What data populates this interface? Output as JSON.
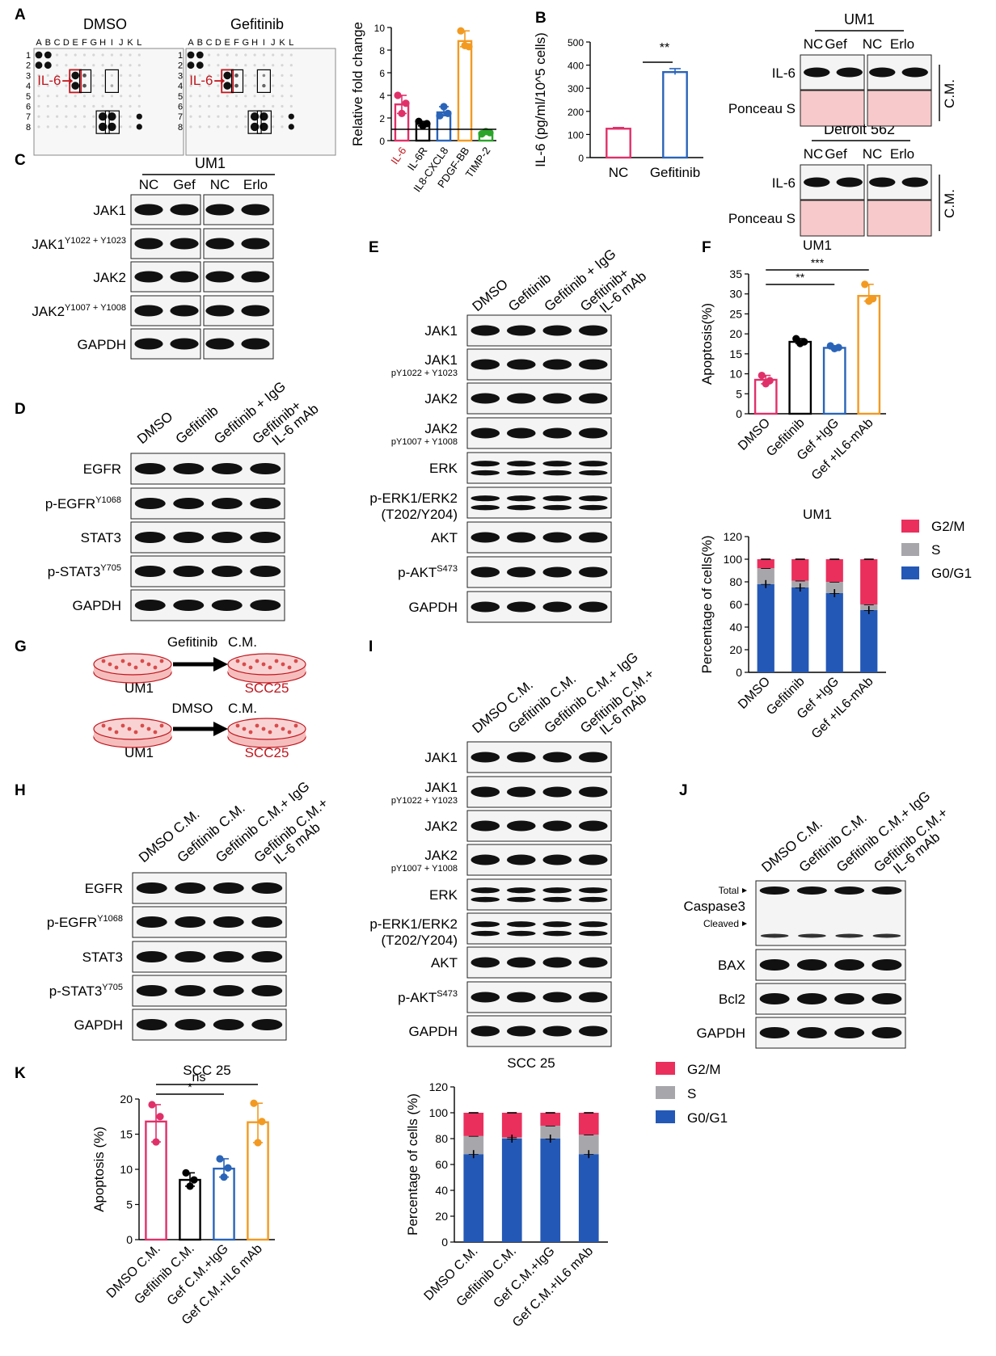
{
  "panels": {
    "A": "A",
    "B": "B",
    "C": "C",
    "D": "D",
    "E": "E",
    "F": "F",
    "G": "G",
    "H": "H",
    "I": "I",
    "J": "J",
    "K": "K"
  },
  "colors": {
    "red": "#e0306a",
    "black": "#000000",
    "blue": "#2a64b8",
    "orange": "#f29a21",
    "green": "#2aa52a",
    "dark_red": "#c0161d",
    "stack_blue": "#2458b6",
    "stack_grey": "#a7a7ab",
    "stack_pink": "#ea2f5d",
    "ponceau": "#f7c9ca"
  },
  "panelA": {
    "array1_title": "DMSO",
    "array2_title": "Gefitinib",
    "cols": [
      "A",
      "B",
      "C",
      "D",
      "E",
      "F",
      "G",
      "H",
      "I",
      "J",
      "K",
      "L"
    ],
    "rows": [
      "1",
      "2",
      "3",
      "4",
      "5",
      "6",
      "7",
      "8"
    ],
    "il6_label": "IL-6"
  },
  "panelB": {
    "um1": "UM1",
    "detroit": "Detroit 562",
    "lanes": [
      "NC",
      "Gef",
      "NC",
      "Erlo"
    ],
    "il6": "IL-6",
    "ponceau": "Ponceau S",
    "cm": "C.M.",
    "sig": "**"
  },
  "panelC": {
    "header": "UM1",
    "lanes": [
      "NC",
      "Gef",
      "NC",
      "Erlo"
    ],
    "rows": [
      {
        "name": "JAK1",
        "sup": ""
      },
      {
        "name": "JAK1",
        "sup": "Y1022 + Y1023"
      },
      {
        "name": "JAK2",
        "sup": ""
      },
      {
        "name": "JAK2",
        "sup": "Y1007 + Y1008"
      },
      {
        "name": "GAPDH",
        "sup": ""
      }
    ]
  },
  "panelD": {
    "lanes": [
      "DMSO",
      "Gefitinib",
      "Gefitinib + IgG",
      "Gefitinib+",
      "IL-6 mAb"
    ],
    "rows": [
      {
        "name": "EGFR",
        "sup": ""
      },
      {
        "name": "p-EGFR",
        "sup": "Y1068"
      },
      {
        "name": "STAT3",
        "sup": ""
      },
      {
        "name": "p-STAT3",
        "sup": "Y705"
      },
      {
        "name": "GAPDH",
        "sup": ""
      }
    ]
  },
  "panelE": {
    "lanes": [
      "DMSO",
      "Gefitinib",
      "Gefitinib + IgG",
      "Gefitinib+",
      "IL-6 mAb"
    ],
    "rows": [
      {
        "name": "JAK1",
        "sub": ""
      },
      {
        "name": "JAK1",
        "sub": "pY1022 + Y1023"
      },
      {
        "name": "JAK2",
        "sub": ""
      },
      {
        "name": "JAK2",
        "sub": "pY1007 + Y1008"
      },
      {
        "name": "ERK",
        "sub": ""
      },
      {
        "name": "p-ERK1/ERK2",
        "sub2": "(T202/Y204)"
      },
      {
        "name": "AKT",
        "sub": ""
      },
      {
        "name": "p-AKT",
        "sup": "S473"
      },
      {
        "name": "GAPDH",
        "sub": ""
      }
    ]
  },
  "panelG": {
    "gef_label": "Gefitinib",
    "cm": "C.M.",
    "dmso_label": "DMSO",
    "um1": "UM1",
    "scc25": "SCC25"
  },
  "panelH": {
    "lanes": [
      "DMSO C.M.",
      "Gefitinib C.M.",
      "Gefitinib C.M.+ IgG",
      "Gefitinib C.M.+",
      "IL-6 mAb"
    ],
    "rows": [
      {
        "name": "EGFR",
        "sup": ""
      },
      {
        "name": "p-EGFR",
        "sup": "Y1068"
      },
      {
        "name": "STAT3",
        "sup": ""
      },
      {
        "name": "p-STAT3",
        "sup": "Y705"
      },
      {
        "name": "GAPDH",
        "sup": ""
      }
    ]
  },
  "panelI": {
    "lanes": [
      "DMSO C.M.",
      "Gefitinib C.M.",
      "Gefitinib C.M.+ IgG",
      "Gefitinib C.M.+",
      "IL-6 mAb"
    ],
    "rows": [
      {
        "name": "JAK1",
        "sub": ""
      },
      {
        "name": "JAK1",
        "sub": "pY1022 + Y1023"
      },
      {
        "name": "JAK2",
        "sub": ""
      },
      {
        "name": "JAK2",
        "sub": "pY1007 + Y1008"
      },
      {
        "name": "ERK",
        "sub": ""
      },
      {
        "name": "p-ERK1/ERK2",
        "sub2": "(T202/Y204)"
      },
      {
        "name": "AKT",
        "sub": ""
      },
      {
        "name": "p-AKT",
        "sup": "S473"
      },
      {
        "name": "GAPDH",
        "sub": ""
      }
    ]
  },
  "panelJ": {
    "lanes": [
      "DMSO C.M.",
      "Gefitinib C.M.",
      "Gefitinib C.M.+ IgG",
      "Gefitinib C.M.+",
      "IL-6 mAb"
    ],
    "total": "Total",
    "caspase": "Caspase3",
    "cleaved": "Cleaved",
    "rows": [
      "BAX",
      "Bcl2",
      "GAPDH"
    ]
  },
  "chart_data": [
    {
      "id": "A_bar",
      "type": "bar",
      "ylabel": "Relative fold change",
      "ylim": [
        0,
        10
      ],
      "yticks": [
        0,
        2,
        4,
        6,
        8,
        10
      ],
      "categories": [
        "IL-6",
        "IL-6R",
        "IL8-CXCL8",
        "PDGF-BB",
        "TIMP-2"
      ],
      "values": [
        3.2,
        1.5,
        2.5,
        8.8,
        0.7
      ],
      "points": [
        [
          4,
          2.4,
          3.3
        ],
        [
          1.7,
          1.3,
          1.5
        ],
        [
          2.2,
          3,
          2.4
        ],
        [
          9.7,
          8.4,
          8.3
        ],
        [
          0.6,
          0.8,
          0.7
        ]
      ],
      "colors": [
        "#e0306a",
        "#000000",
        "#2a64b8",
        "#f29a21",
        "#2aa52a"
      ],
      "reference_line": 1
    },
    {
      "id": "B_bar",
      "type": "bar",
      "ylabel": "IL-6 (pg/ml/10^5 cells)",
      "ylim": [
        0,
        500
      ],
      "yticks": [
        0,
        100,
        200,
        300,
        400,
        500
      ],
      "categories": [
        "NC",
        "Gefitinib"
      ],
      "values": [
        125,
        370
      ],
      "colors": [
        "#e0306a",
        "#2a64b8"
      ],
      "significance": "**"
    },
    {
      "id": "F_bar",
      "type": "bar",
      "title": "UM1",
      "ylabel": "Apoptosis(%)",
      "ylim": [
        0,
        35
      ],
      "yticks": [
        0,
        5,
        10,
        15,
        20,
        25,
        30,
        35
      ],
      "categories": [
        "DMSO",
        "Gefitinib",
        "Gef +IgG",
        "Gef +IL6-mAb"
      ],
      "values": [
        8.5,
        18,
        16.5,
        29.5
      ],
      "points": [
        [
          9.6,
          7.5,
          8.3
        ],
        [
          18.8,
          17.6,
          18
        ],
        [
          17,
          16.3,
          16.6
        ],
        [
          32.4,
          28.2,
          28.8
        ]
      ],
      "colors": [
        "#e0306a",
        "#000000",
        "#2a64b8",
        "#f29a21"
      ],
      "significance": [
        {
          "from": 0,
          "to": 2,
          "label": "**"
        },
        {
          "from": 0,
          "to": 3,
          "label": "***"
        }
      ]
    },
    {
      "id": "F_stack",
      "type": "bar",
      "stacked": true,
      "title": "UM1",
      "ylabel": "Percentage of cells(%)",
      "ylim": [
        0,
        120
      ],
      "yticks": [
        0,
        20,
        40,
        60,
        80,
        100,
        120
      ],
      "categories": [
        "DMSO",
        "Gefitinib",
        "Gef +IgG",
        "Gef +IL6-mAb"
      ],
      "series": [
        {
          "name": "G0/G1",
          "values": [
            78,
            75,
            70,
            55
          ]
        },
        {
          "name": "S",
          "values": [
            14,
            6,
            10,
            5
          ]
        },
        {
          "name": "G2/M",
          "values": [
            8,
            19,
            20,
            40
          ]
        }
      ],
      "legend": "right"
    },
    {
      "id": "K_bar",
      "type": "bar",
      "title": "SCC 25",
      "ylabel": "Apoptosis (%)",
      "ylim": [
        0,
        20
      ],
      "yticks": [
        0,
        5,
        10,
        15,
        20
      ],
      "categories": [
        "DMSO C.M.",
        "Gefitinib C.M.",
        "Gef C.M.+IgG",
        "Gef C.M.+IL6 mAb"
      ],
      "values": [
        16.8,
        8.5,
        10.1,
        16.7
      ],
      "points": [
        [
          19.2,
          13.9,
          17.5
        ],
        [
          9.5,
          7.6,
          8.5
        ],
        [
          11.5,
          8.9,
          10.2
        ],
        [
          19.4,
          13.8,
          16.8
        ]
      ],
      "colors": [
        "#e0306a",
        "#000000",
        "#2a64b8",
        "#f29a21"
      ],
      "significance": [
        {
          "from": 0,
          "to": 2,
          "label": "*"
        },
        {
          "from": 0,
          "to": 3,
          "label": "ns"
        }
      ]
    },
    {
      "id": "K_stack",
      "type": "bar",
      "stacked": true,
      "title": "SCC 25",
      "ylabel": "Percentage of cells (%)",
      "ylim": [
        0,
        120
      ],
      "yticks": [
        0,
        20,
        40,
        60,
        80,
        100,
        120
      ],
      "categories": [
        "DMSO C.M.",
        "Gefitinib C.M.",
        "Gef C.M.+IgG",
        "Gef C.M.+IL6 mAb"
      ],
      "series": [
        {
          "name": "G0/G1",
          "values": [
            68,
            80,
            80,
            68
          ]
        },
        {
          "name": "S",
          "values": [
            14,
            1,
            10,
            15
          ]
        },
        {
          "name": "G2/M",
          "values": [
            18,
            19,
            10,
            17
          ]
        }
      ],
      "legend": "right"
    }
  ]
}
